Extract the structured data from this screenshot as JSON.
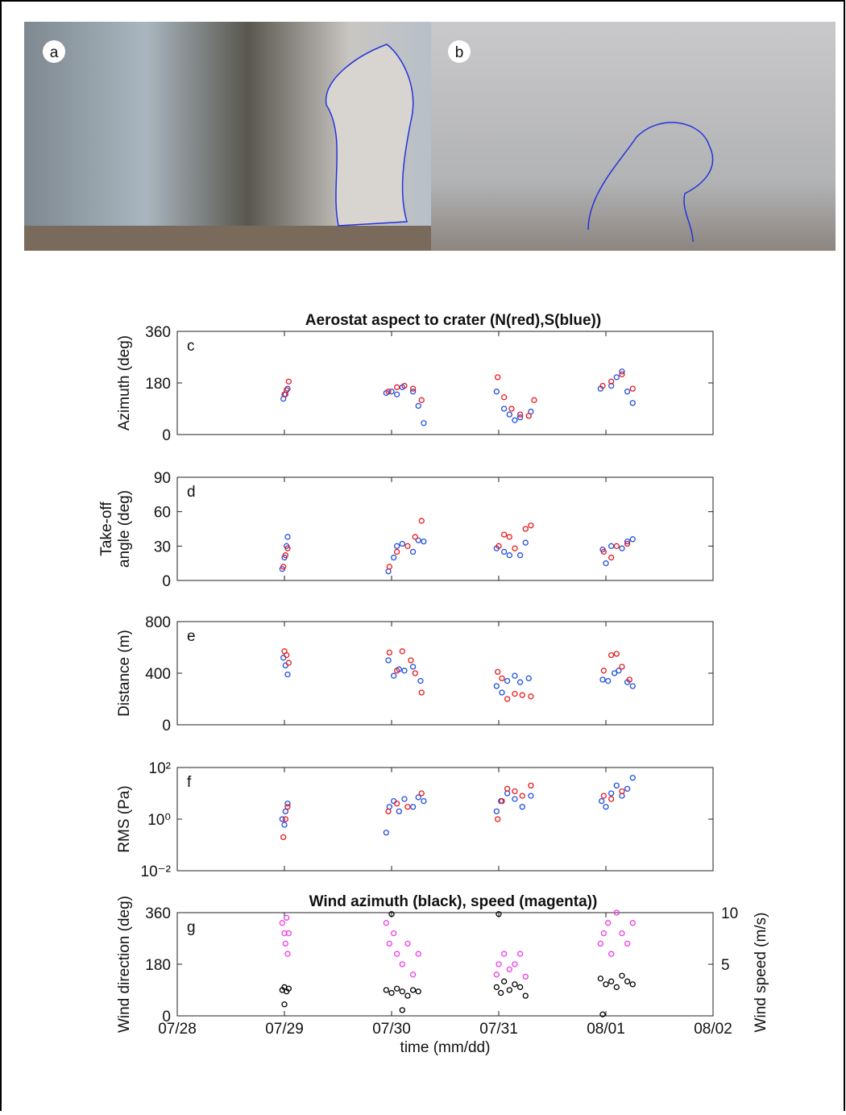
{
  "photo_labels": [
    "a",
    "b"
  ],
  "chart_data": [
    {
      "type": "scatter",
      "label": "c",
      "title": "Aerostat aspect to crater (N(red),S(blue))",
      "ylabel": [
        "Azimuth (deg)"
      ],
      "xlim": [
        28,
        33
      ],
      "xticks": [
        28,
        29,
        30,
        31,
        32,
        33
      ],
      "ylim": [
        0,
        360
      ],
      "yticks": [
        0,
        180,
        360
      ],
      "series": [
        {
          "color": "#1f4fe0",
          "x": [
            28.99,
            29.01,
            29.03,
            29.95,
            30.0,
            30.05,
            30.1,
            30.2,
            30.25,
            30.3,
            30.98,
            31.05,
            31.1,
            31.15,
            31.2,
            31.3,
            31.95,
            32.05,
            32.1,
            32.15,
            32.2,
            32.25
          ],
          "values": [
            125,
            140,
            160,
            145,
            150,
            140,
            165,
            150,
            100,
            40,
            150,
            90,
            70,
            50,
            60,
            80,
            160,
            170,
            200,
            220,
            150,
            110
          ]
        },
        {
          "color": "#e8191c",
          "x": [
            29.0,
            29.02,
            29.04,
            29.97,
            30.05,
            30.12,
            30.2,
            30.28,
            30.99,
            31.05,
            31.12,
            31.2,
            31.28,
            31.33,
            31.97,
            32.05,
            32.15,
            32.25
          ],
          "values": [
            140,
            155,
            185,
            150,
            165,
            170,
            160,
            120,
            200,
            130,
            90,
            70,
            65,
            120,
            170,
            185,
            210,
            160
          ]
        }
      ]
    },
    {
      "type": "scatter",
      "label": "d",
      "ylabel": [
        "Take-off",
        "angle (deg)"
      ],
      "xlim": [
        28,
        33
      ],
      "xticks": [
        28,
        29,
        30,
        31,
        32,
        33
      ],
      "ylim": [
        0,
        90
      ],
      "yticks": [
        0,
        30,
        60,
        90
      ],
      "series": [
        {
          "color": "#1f4fe0",
          "x": [
            28.98,
            29.0,
            29.02,
            29.03,
            29.97,
            30.02,
            30.05,
            30.1,
            30.2,
            30.25,
            30.3,
            30.98,
            31.05,
            31.1,
            31.2,
            31.25,
            31.97,
            32.0,
            32.05,
            32.15,
            32.2,
            32.25
          ],
          "values": [
            10,
            20,
            30,
            38,
            8,
            20,
            30,
            32,
            25,
            35,
            34,
            28,
            25,
            22,
            22,
            33,
            27,
            15,
            30,
            28,
            34,
            36
          ]
        },
        {
          "color": "#e8191c",
          "x": [
            28.99,
            29.01,
            29.03,
            29.98,
            30.05,
            30.15,
            30.22,
            30.28,
            31.0,
            31.05,
            31.1,
            31.15,
            31.25,
            31.3,
            31.98,
            32.05,
            32.1,
            32.2
          ],
          "values": [
            12,
            22,
            28,
            12,
            25,
            30,
            38,
            52,
            30,
            40,
            38,
            28,
            45,
            48,
            25,
            20,
            30,
            32
          ]
        }
      ]
    },
    {
      "type": "scatter",
      "label": "e",
      "ylabel": [
        "Distance (m)"
      ],
      "xlim": [
        28,
        33
      ],
      "xticks": [
        28,
        29,
        30,
        31,
        32,
        33
      ],
      "ylim": [
        0,
        800
      ],
      "yticks": [
        0,
        400,
        800
      ],
      "series": [
        {
          "color": "#1f4fe0",
          "x": [
            28.99,
            29.01,
            29.03,
            29.97,
            30.02,
            30.07,
            30.12,
            30.2,
            30.27,
            30.98,
            31.03,
            31.08,
            31.15,
            31.2,
            31.28,
            31.97,
            32.02,
            32.08,
            32.12,
            32.2,
            32.25
          ],
          "values": [
            520,
            460,
            390,
            500,
            380,
            430,
            420,
            450,
            340,
            300,
            250,
            340,
            380,
            330,
            360,
            350,
            340,
            400,
            420,
            330,
            300
          ]
        },
        {
          "color": "#e8191c",
          "x": [
            29.0,
            29.02,
            29.04,
            29.98,
            30.05,
            30.1,
            30.18,
            30.22,
            30.28,
            30.99,
            31.03,
            31.08,
            31.15,
            31.22,
            31.3,
            31.98,
            32.05,
            32.1,
            32.15,
            32.22
          ],
          "values": [
            570,
            540,
            480,
            560,
            420,
            570,
            500,
            400,
            250,
            410,
            360,
            200,
            240,
            230,
            220,
            420,
            540,
            550,
            450,
            350
          ]
        }
      ]
    },
    {
      "type": "scatter",
      "label": "f",
      "ylabel": [
        "RMS (Pa)"
      ],
      "yscale": "log",
      "xlim": [
        28,
        33
      ],
      "xticks": [
        28,
        29,
        30,
        31,
        32,
        33
      ],
      "ylim": [
        0.01,
        100
      ],
      "yticks": [
        {
          "value": 0.01,
          "label": "10⁻²"
        },
        {
          "value": 1,
          "label": "10⁰"
        },
        {
          "value": 100,
          "label": "10²"
        }
      ],
      "series": [
        {
          "color": "#1f4fe0",
          "x": [
            28.98,
            29.0,
            29.01,
            29.03,
            29.95,
            29.98,
            30.02,
            30.07,
            30.12,
            30.2,
            30.25,
            30.3,
            30.98,
            31.02,
            31.08,
            31.15,
            31.22,
            31.3,
            31.96,
            32.0,
            32.05,
            32.1,
            32.15,
            32.2,
            32.25
          ],
          "values": [
            1,
            0.6,
            2,
            4,
            0.3,
            3,
            5,
            2,
            6,
            3,
            7,
            5,
            2,
            5,
            10,
            6,
            3,
            8,
            5,
            3,
            10,
            20,
            8,
            15,
            40
          ]
        },
        {
          "color": "#e8191c",
          "x": [
            28.99,
            29.01,
            29.03,
            29.97,
            30.05,
            30.15,
            30.28,
            30.99,
            31.03,
            31.08,
            31.15,
            31.22,
            31.3,
            31.98,
            32.05,
            32.15
          ],
          "values": [
            0.2,
            1,
            3,
            2,
            4,
            3,
            10,
            1,
            5,
            15,
            12,
            8,
            20,
            8,
            6,
            12
          ]
        }
      ]
    },
    {
      "type": "scatter",
      "label": "g",
      "title": "Wind azimuth (black), speed (magenta))",
      "ylabel": [
        "Wind direction (deg)"
      ],
      "y2label": "Wind speed (m/s)",
      "xlabel": "time (mm/dd)",
      "xlim": [
        28,
        33
      ],
      "xticks": [
        {
          "value": 28,
          "label": "07/28"
        },
        {
          "value": 29,
          "label": "07/29"
        },
        {
          "value": 30,
          "label": "07/30"
        },
        {
          "value": 31,
          "label": "07/31"
        },
        {
          "value": 32,
          "label": "08/01"
        },
        {
          "value": 33,
          "label": "08/02"
        }
      ],
      "ylim": [
        0,
        360
      ],
      "yticks": [
        0,
        180,
        360
      ],
      "y2lim": [
        0,
        10
      ],
      "y2ticks": [
        5,
        10
      ],
      "series": [
        {
          "color": "#000000",
          "x": [
            28.98,
            29.0,
            29.02,
            29.04,
            29.0,
            29.95,
            30.0,
            30.05,
            30.1,
            30.15,
            30.2,
            30.25,
            30.1,
            30.0,
            30.98,
            31.02,
            31.05,
            31.1,
            31.15,
            31.2,
            31.25,
            31.0,
            31.95,
            32.0,
            32.05,
            32.1,
            32.15,
            32.2,
            32.25,
            31.97
          ],
          "values": [
            90,
            100,
            85,
            95,
            40,
            90,
            80,
            95,
            85,
            70,
            90,
            85,
            20,
            355,
            100,
            80,
            120,
            90,
            110,
            100,
            70,
            355,
            130,
            110,
            120,
            100,
            140,
            120,
            110,
            5
          ]
        },
        {
          "color": "#ee3ae6",
          "axis": "y2",
          "x": [
            28.98,
            29.0,
            29.01,
            29.02,
            29.03,
            29.04,
            29.95,
            29.98,
            30.02,
            30.05,
            30.1,
            30.15,
            30.2,
            30.25,
            30.98,
            31.0,
            31.05,
            31.1,
            31.15,
            31.2,
            31.25,
            31.95,
            31.98,
            32.02,
            32.05,
            32.1,
            32.15,
            32.2,
            32.25
          ],
          "values": [
            9,
            8,
            7,
            9.5,
            6,
            8,
            9,
            7,
            8,
            6,
            5,
            7,
            4,
            6,
            4,
            5,
            6,
            4.5,
            5,
            6,
            3.8,
            7,
            8,
            9,
            6,
            10,
            8,
            7,
            9
          ]
        }
      ]
    }
  ]
}
